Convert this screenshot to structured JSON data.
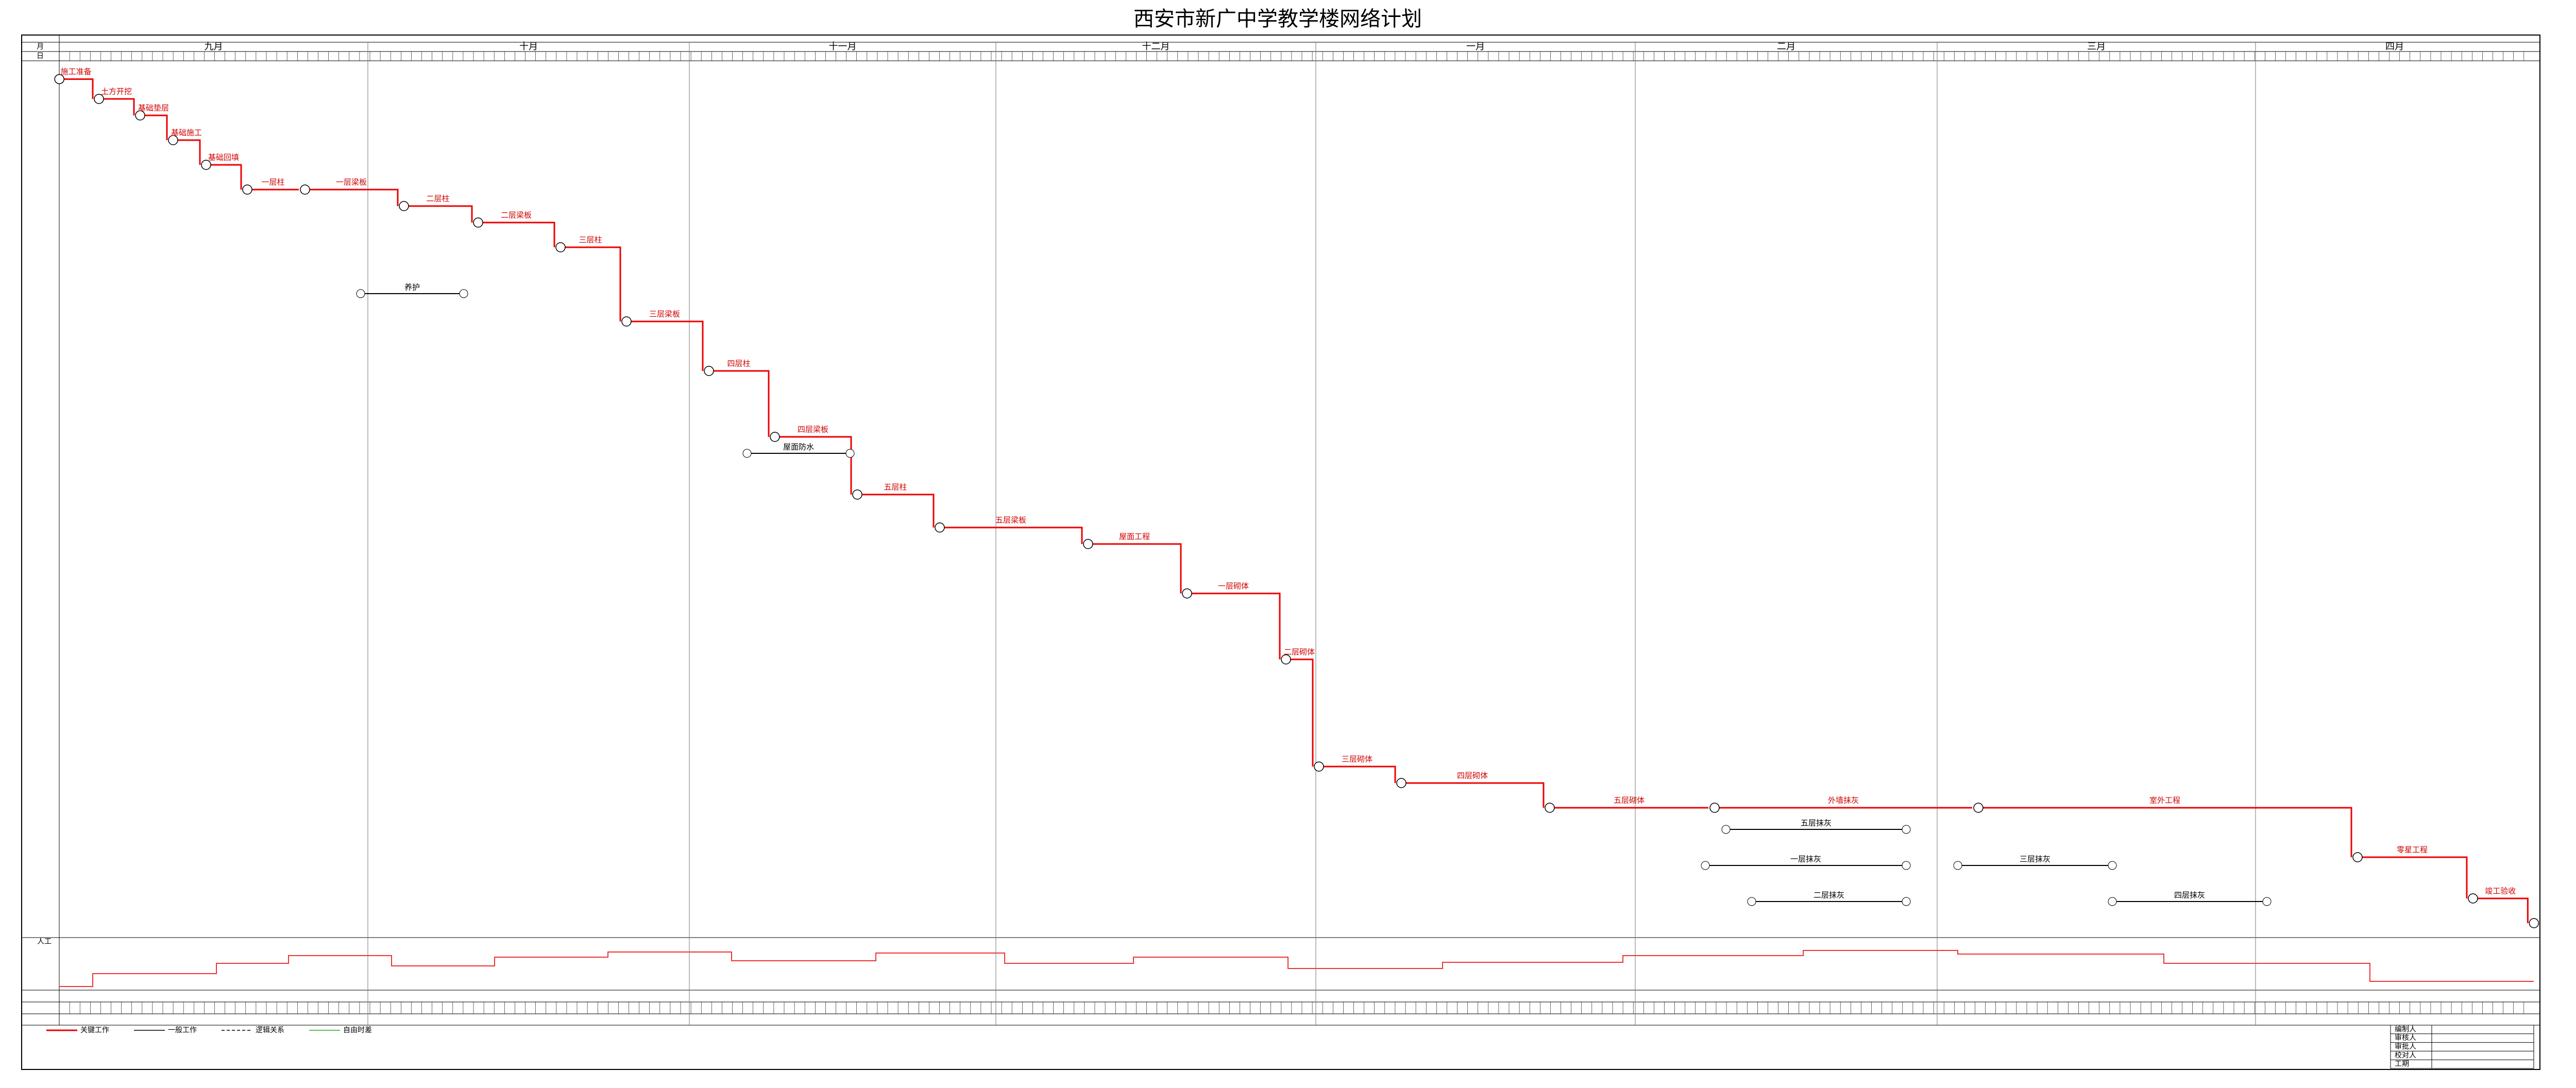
{
  "title": "西安市新广中学教学楼网络计划",
  "header": {
    "month_label": "月",
    "day_label": "日"
  },
  "months": [
    "九月",
    "十月",
    "十一月",
    "十二月",
    "一月",
    "二月",
    "三月",
    "四月"
  ],
  "critical_activities": [
    "施工准备",
    "土方开挖",
    "基础垫层",
    "基础施工",
    "基础回填",
    "一层柱",
    "一层梁板",
    "二层柱",
    "二层梁板",
    "三层柱",
    "三层梁板",
    "四层柱",
    "四层梁板",
    "五层柱",
    "五层梁板",
    "屋面工程",
    "一层砌体",
    "二层砌体",
    "三层砌体",
    "四层砌体",
    "五层砌体",
    "外墙抹灰",
    "室外工程",
    "零星工程",
    "竣工验收"
  ],
  "side_activities": [
    "养护",
    "屋面防水",
    "一层抹灰",
    "二层抹灰",
    "三层抹灰",
    "四层抹灰",
    "五层抹灰"
  ],
  "resource_label": "人工",
  "legend": [
    "关键工作",
    "一般工作",
    "逻辑关系",
    "自由时差"
  ],
  "title_block": [
    "编制人",
    "审核人",
    "审批人",
    "校对人",
    "工期"
  ]
}
